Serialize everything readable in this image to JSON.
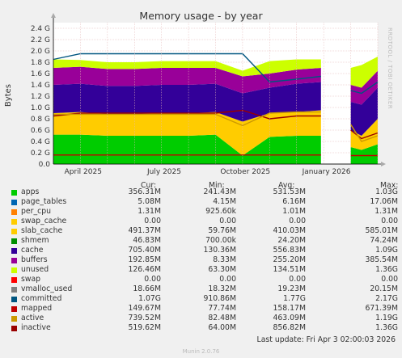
{
  "title": "Memory usage - by year",
  "ylabel": "Bytes",
  "side_label": "RRDTOOL / TOBI OETIKER",
  "footer": "Last update:  Fri Apr  3 02:00:03 2026",
  "munin": "Munin 2.0.76",
  "headers": {
    "cur": "Cur:",
    "min": "Min:",
    "avg": "Avg:",
    "max": "Max:"
  },
  "chart_data": {
    "type": "area",
    "title": "Memory usage - by year",
    "ylabel": "Bytes",
    "ylim": [
      0,
      2.5
    ],
    "y_unit": "G",
    "y_ticks": [
      "0.0",
      "0.2 G",
      "0.4 G",
      "0.6 G",
      "0.8 G",
      "1.0 G",
      "1.2 G",
      "1.4 G",
      "1.6 G",
      "1.8 G",
      "2.0 G",
      "2.2 G",
      "2.4 G"
    ],
    "x_ticks": [
      "April 2025",
      "July 2025",
      "October 2025",
      "January 2026"
    ],
    "grid": true,
    "series": [
      {
        "name": "apps",
        "color": "#00cc00",
        "cur": "356.31M",
        "min": "241.43M",
        "avg": "531.53M",
        "max": "1.03G"
      },
      {
        "name": "page_tables",
        "color": "#0066b3",
        "cur": "5.08M",
        "min": "4.15M",
        "avg": "6.16M",
        "max": "17.06M"
      },
      {
        "name": "per_cpu",
        "color": "#ff8000",
        "cur": "1.31M",
        "min": "925.60k",
        "avg": "1.01M",
        "max": "1.31M"
      },
      {
        "name": "swap_cache",
        "color": "#ffcc00",
        "cur": "0.00",
        "min": "0.00",
        "avg": "0.00",
        "max": "0.00"
      },
      {
        "name": "slab_cache",
        "color": "#ffcc00",
        "cur": "491.37M",
        "min": "59.76M",
        "avg": "410.03M",
        "max": "585.01M"
      },
      {
        "name": "shmem",
        "color": "#008f00",
        "cur": "46.83M",
        "min": "700.00k",
        "avg": "24.20M",
        "max": "74.24M"
      },
      {
        "name": "cache",
        "color": "#330099",
        "cur": "705.40M",
        "min": "130.36M",
        "avg": "556.83M",
        "max": "1.09G"
      },
      {
        "name": "buffers",
        "color": "#990099",
        "cur": "192.85M",
        "min": "8.33M",
        "avg": "255.20M",
        "max": "385.54M"
      },
      {
        "name": "unused",
        "color": "#ccff00",
        "cur": "126.46M",
        "min": "63.30M",
        "avg": "134.51M",
        "max": "1.36G"
      },
      {
        "name": "swap",
        "color": "#ff0000",
        "cur": "0.00",
        "min": "0.00",
        "avg": "0.00",
        "max": "0.00"
      },
      {
        "name": "vmalloc_used",
        "color": "#808080",
        "cur": "18.66M",
        "min": "18.32M",
        "avg": "19.23M",
        "max": "20.15M"
      },
      {
        "name": "committed",
        "color": "#005580",
        "cur": "1.07G",
        "min": "910.86M",
        "avg": "1.77G",
        "max": "2.17G"
      },
      {
        "name": "mapped",
        "color": "#c00000",
        "cur": "149.67M",
        "min": "77.74M",
        "avg": "158.17M",
        "max": "671.39M"
      },
      {
        "name": "active",
        "color": "#cc9900",
        "cur": "739.52M",
        "min": "82.48M",
        "avg": "463.09M",
        "max": "1.19G"
      },
      {
        "name": "inactive",
        "color": "#990000",
        "cur": "519.62M",
        "min": "64.00M",
        "avg": "856.82M",
        "max": "1.36G"
      }
    ],
    "profile": {
      "x_months": [
        0,
        1,
        2,
        3,
        4,
        5,
        6,
        7,
        8,
        9,
        9.9,
        10.6,
        11,
        11.4,
        12
      ],
      "apps_g": [
        0.52,
        0.52,
        0.5,
        0.5,
        0.5,
        0.5,
        0.52,
        0.15,
        0.48,
        0.5,
        0.5,
        null,
        0.3,
        0.25,
        0.35
      ],
      "slab_g": [
        0.38,
        0.4,
        0.38,
        0.38,
        0.4,
        0.4,
        0.4,
        0.6,
        0.42,
        0.42,
        0.45,
        null,
        0.3,
        0.25,
        0.45
      ],
      "cache_g": [
        0.5,
        0.5,
        0.5,
        0.5,
        0.5,
        0.5,
        0.5,
        0.5,
        0.45,
        0.5,
        0.5,
        null,
        0.5,
        0.55,
        0.55
      ],
      "buffers_g": [
        0.3,
        0.3,
        0.3,
        0.3,
        0.3,
        0.3,
        0.28,
        0.3,
        0.25,
        0.25,
        0.25,
        null,
        0.3,
        0.3,
        0.3
      ],
      "unused_g": [
        0.15,
        0.12,
        0.12,
        0.12,
        0.12,
        0.12,
        0.12,
        0.1,
        0.22,
        0.18,
        0.15,
        null,
        0.3,
        0.4,
        0.25
      ],
      "committed_g": [
        1.85,
        1.95,
        1.95,
        1.95,
        1.95,
        1.95,
        1.95,
        1.95,
        1.45,
        1.5,
        1.55,
        null,
        1.3,
        1.25,
        1.45
      ],
      "inactive_g": [
        0.85,
        0.9,
        0.9,
        0.9,
        0.9,
        0.9,
        0.9,
        0.95,
        0.8,
        0.85,
        0.85,
        null,
        0.6,
        0.45,
        0.55
      ],
      "active_g": [
        0.88,
        0.88,
        0.88,
        0.88,
        0.88,
        0.88,
        0.88,
        0.68,
        0.9,
        0.92,
        0.92,
        null,
        0.7,
        0.4,
        0.5
      ],
      "mapped_g": [
        0.16,
        0.16,
        0.16,
        0.16,
        0.16,
        0.16,
        0.16,
        0.16,
        0.16,
        0.16,
        0.16,
        null,
        0.15,
        0.15,
        0.15
      ]
    }
  }
}
